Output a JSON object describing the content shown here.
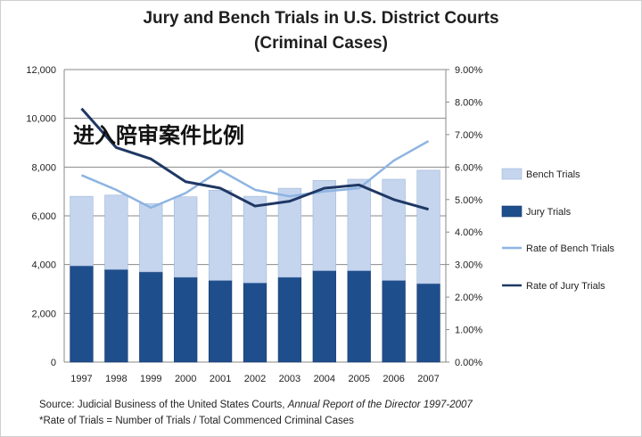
{
  "chart_data": {
    "type": "bar",
    "title": "Jury and Bench Trials in U.S. District Courts",
    "subtitle": "(Criminal Cases)",
    "categories": [
      "1997",
      "1998",
      "1999",
      "2000",
      "2001",
      "2002",
      "2003",
      "2004",
      "2005",
      "2006",
      "2007"
    ],
    "series": [
      {
        "name": "Bench Trials",
        "type": "stacked-bar",
        "axis": "left",
        "color": "#c5d5ee",
        "values": [
          2850,
          3050,
          2800,
          3300,
          3700,
          3550,
          3650,
          3700,
          3750,
          4150,
          4650
        ]
      },
      {
        "name": "Jury Trials",
        "type": "stacked-bar",
        "axis": "left",
        "color": "#1f4e8c",
        "values": [
          3950,
          3800,
          3700,
          3480,
          3350,
          3250,
          3480,
          3750,
          3750,
          3350,
          3220
        ]
      },
      {
        "name": "Rate of Bench Trials",
        "type": "line",
        "axis": "right",
        "color": "#8db4e2",
        "values": [
          5.75,
          5.3,
          4.75,
          5.2,
          5.9,
          5.3,
          5.1,
          5.25,
          5.35,
          6.2,
          6.8
        ]
      },
      {
        "name": "Rate of Jury Trials",
        "type": "line",
        "axis": "right",
        "color": "#1f3864",
        "values": [
          7.8,
          6.6,
          6.25,
          5.55,
          5.35,
          4.8,
          4.95,
          5.35,
          5.45,
          5.0,
          4.7
        ]
      }
    ],
    "ylim": [
      0,
      12000
    ],
    "yticks": [
      "0",
      "2,000",
      "4,000",
      "6,000",
      "8,000",
      "10,000",
      "12,000"
    ],
    "y2lim": [
      0,
      9
    ],
    "y2ticks": [
      "0.00%",
      "1.00%",
      "2.00%",
      "3.00%",
      "4.00%",
      "5.00%",
      "6.00%",
      "7.00%",
      "8.00%",
      "9.00%"
    ],
    "grid": true,
    "legend_position": "right",
    "annotation": "进入陪审案件比例"
  },
  "footnote": {
    "source_prefix": "Source: Judicial Business of the United States Courts, ",
    "source_italic": "Annual Report of the Director 1997-2007",
    "rate_note": "*Rate of Trials = Number of Trials / Total Commenced Criminal Cases"
  }
}
